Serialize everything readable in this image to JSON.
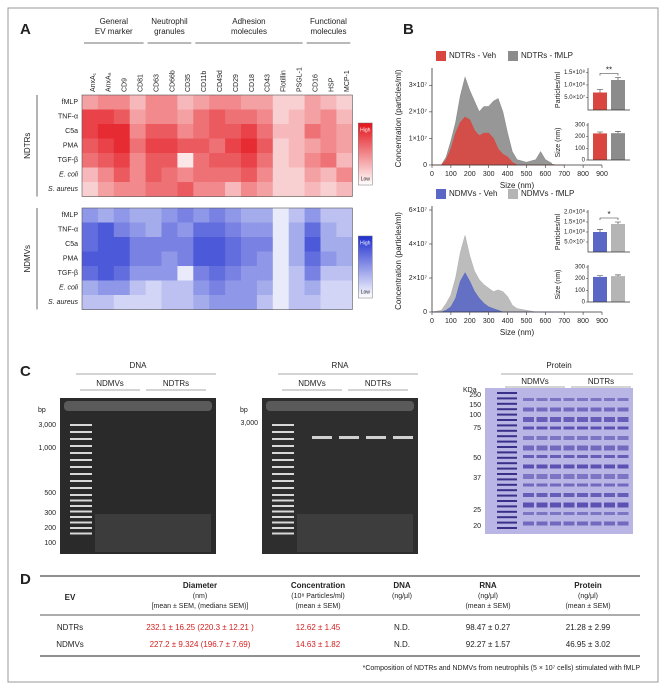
{
  "panel_labels": [
    "A",
    "B",
    "C",
    "D"
  ],
  "chart_data": [
    {
      "type": "heatmap",
      "label": "NDTRs",
      "color": "#e3131b",
      "legend_labels": [
        "High",
        "Low"
      ],
      "column_groups": [
        {
          "name": [
            "General",
            "EV marker"
          ],
          "categories": [
            "AnxA₁",
            "AnxA₅",
            "CD9",
            "CD81"
          ]
        },
        {
          "name": [
            "Neutrophil",
            "granules"
          ],
          "categories": [
            "CD63",
            "CD66b",
            "CD35"
          ]
        },
        {
          "name": [
            "Adhesion",
            "molecules"
          ],
          "categories": [
            "CD11b",
            "CD49d",
            "CD29",
            "CD18",
            "CD43",
            "Flotillin",
            "PSGL-1"
          ]
        },
        {
          "name": [
            "Functional",
            "molecules"
          ],
          "categories": [
            "CD16",
            "HSP",
            "MCP-1"
          ]
        }
      ],
      "rows": [
        "fMLP",
        "TNF-α",
        "C5a",
        "PMA",
        "TGF-β",
        "E. coli",
        "S. aureus"
      ],
      "values": [
        [
          0.4,
          0.5,
          0.5,
          0.3,
          0.5,
          0.5,
          0.3,
          0.4,
          0.5,
          0.5,
          0.4,
          0.4,
          0.2,
          0.2,
          0.4,
          0.3,
          0.2
        ],
        [
          0.8,
          0.8,
          0.7,
          0.4,
          0.5,
          0.5,
          0.4,
          0.6,
          0.7,
          0.6,
          0.6,
          0.5,
          0.2,
          0.3,
          0.4,
          0.5,
          0.3
        ],
        [
          0.8,
          0.9,
          0.9,
          0.5,
          0.7,
          0.7,
          0.5,
          0.6,
          0.7,
          0.7,
          0.8,
          0.6,
          0.3,
          0.3,
          0.6,
          0.5,
          0.4
        ],
        [
          0.7,
          0.8,
          0.9,
          0.6,
          0.8,
          0.8,
          0.7,
          0.7,
          0.6,
          0.8,
          0.9,
          0.7,
          0.2,
          0.3,
          0.4,
          0.5,
          0.4
        ],
        [
          0.6,
          0.7,
          0.8,
          0.5,
          0.7,
          0.7,
          0.1,
          0.6,
          0.7,
          0.7,
          0.8,
          0.6,
          0.2,
          0.3,
          0.5,
          0.6,
          0.3
        ],
        [
          0.3,
          0.5,
          0.7,
          0.5,
          0.7,
          0.6,
          0.5,
          0.6,
          0.6,
          0.6,
          0.7,
          0.5,
          0.2,
          0.2,
          0.4,
          0.3,
          0.5
        ],
        [
          0.2,
          0.4,
          0.5,
          0.5,
          0.6,
          0.6,
          0.7,
          0.5,
          0.5,
          0.3,
          0.5,
          0.4,
          0.2,
          0.2,
          0.3,
          0.2,
          0.3
        ]
      ]
    },
    {
      "type": "heatmap",
      "label": "NDMVs",
      "color": "#1f2fd0",
      "legend_labels": [
        "High",
        "Low"
      ],
      "rows": [
        "fMLP",
        "TNF-α",
        "C5a",
        "PMA",
        "TGF-β",
        "E. coli",
        "S. aureus"
      ],
      "values": [
        [
          0.5,
          0.4,
          0.5,
          0.4,
          0.4,
          0.5,
          0.6,
          0.5,
          0.6,
          0.5,
          0.4,
          0.4,
          0.1,
          0.3,
          0.5,
          0.3,
          0.3
        ],
        [
          0.7,
          0.8,
          0.6,
          0.5,
          0.4,
          0.6,
          0.5,
          0.7,
          0.7,
          0.6,
          0.5,
          0.5,
          0.1,
          0.4,
          0.7,
          0.4,
          0.3
        ],
        [
          0.7,
          0.8,
          0.8,
          0.6,
          0.6,
          0.6,
          0.6,
          0.8,
          0.8,
          0.7,
          0.6,
          0.6,
          0.1,
          0.4,
          0.8,
          0.4,
          0.4
        ],
        [
          0.8,
          0.8,
          0.8,
          0.6,
          0.6,
          0.5,
          0.6,
          0.8,
          0.8,
          0.7,
          0.6,
          0.5,
          0.1,
          0.4,
          0.7,
          0.5,
          0.4
        ],
        [
          0.7,
          0.8,
          0.7,
          0.5,
          0.5,
          0.5,
          0.1,
          0.6,
          0.7,
          0.6,
          0.5,
          0.5,
          0.1,
          0.3,
          0.6,
          0.3,
          0.3
        ],
        [
          0.4,
          0.5,
          0.5,
          0.3,
          0.2,
          0.3,
          0.3,
          0.5,
          0.6,
          0.5,
          0.5,
          0.4,
          0.1,
          0.3,
          0.4,
          0.2,
          0.2
        ],
        [
          0.3,
          0.3,
          0.2,
          0.2,
          0.2,
          0.3,
          0.3,
          0.4,
          0.5,
          0.5,
          0.5,
          0.3,
          0.1,
          0.3,
          0.3,
          0.2,
          0.2
        ]
      ]
    },
    {
      "type": "area",
      "xlabel": "Size (nm)",
      "ylabel": "Concentration (particles/ml)",
      "x": [
        0,
        50,
        75,
        100,
        125,
        150,
        175,
        200,
        225,
        250,
        275,
        300,
        325,
        350,
        375,
        400,
        425,
        450,
        500,
        550,
        575,
        600,
        650,
        700
      ],
      "series": [
        {
          "name": "NDTRs - Veh",
          "color": "#d9463f",
          "values": [
            0,
            0,
            2000000,
            6000000,
            12000000,
            16000000,
            18000000,
            17000000,
            13000000,
            11000000,
            12000000,
            12000000,
            10000000,
            6000000,
            4000000,
            3000000,
            1000000,
            0,
            0,
            0,
            0,
            0,
            0,
            0
          ]
        },
        {
          "name": "NDTRs - fMLP",
          "color": "#8c8c8c",
          "values": [
            0,
            0,
            3000000,
            9000000,
            16000000,
            26000000,
            33000000,
            28000000,
            24000000,
            20000000,
            22000000,
            22000000,
            24000000,
            25000000,
            20000000,
            12000000,
            5000000,
            2000000,
            1000000,
            2000000,
            5000000,
            2000000,
            0,
            0
          ]
        }
      ],
      "xlim": [
        0,
        900
      ],
      "xticks": [
        0,
        100,
        200,
        300,
        400,
        500,
        600,
        700,
        800,
        900
      ],
      "ylim": [
        0,
        35000000
      ],
      "yticks": [
        0,
        {
          "value": 10000000,
          "label": "1×10⁷"
        },
        {
          "value": 20000000,
          "label": "2×10⁷"
        },
        {
          "value": 30000000,
          "label": "3×10⁷"
        }
      ]
    },
    {
      "type": "bar",
      "ylabel": "Particles/ml",
      "values": [
        70000000,
        120000000
      ],
      "errors": [
        12000000,
        10000000
      ],
      "colors": [
        "#d9463f",
        "#8c8c8c"
      ],
      "annotation": "**",
      "ylim": [
        0,
        160000000
      ],
      "yticks": [
        {
          "value": 50000000,
          "label": "5.0×10⁷"
        },
        {
          "value": 100000000,
          "label": "1.0×10⁸"
        },
        {
          "value": 150000000,
          "label": "1.5×10⁸"
        }
      ]
    },
    {
      "type": "bar",
      "ylabel": "Size (nm)",
      "values": [
        228,
        230
      ],
      "errors": [
        12,
        15
      ],
      "colors": [
        "#d9463f",
        "#8c8c8c"
      ],
      "ylim": [
        0,
        300
      ],
      "yticks": [
        0,
        100,
        200,
        300
      ]
    },
    {
      "type": "area",
      "xlabel": "Size (nm)",
      "ylabel": "Concentration (particles/ml)",
      "x": [
        0,
        50,
        75,
        100,
        125,
        150,
        175,
        200,
        225,
        250,
        275,
        300,
        325,
        350,
        375,
        400,
        425,
        450,
        500,
        550,
        575,
        600,
        650,
        700
      ],
      "series": [
        {
          "name": "NDMVs - Veh",
          "color": "#5a67c4",
          "values": [
            0,
            0,
            1000000,
            3000000,
            8000000,
            18000000,
            23000000,
            18000000,
            12000000,
            8000000,
            5000000,
            3000000,
            2000000,
            1000000,
            0,
            0,
            0,
            0,
            0,
            0,
            0,
            0,
            0,
            0
          ]
        },
        {
          "name": "NDMVs - fMLP",
          "color": "#b5b5b5",
          "values": [
            0,
            1000000,
            5000000,
            10000000,
            20000000,
            35000000,
            45000000,
            33000000,
            24000000,
            19000000,
            16000000,
            14000000,
            12000000,
            13000000,
            12000000,
            9000000,
            4000000,
            2000000,
            1000000,
            0,
            0,
            0,
            0,
            0
          ]
        }
      ],
      "xlim": [
        0,
        900
      ],
      "xticks": [
        0,
        100,
        200,
        300,
        400,
        500,
        600,
        700,
        800,
        900
      ],
      "ylim": [
        0,
        60000000
      ],
      "yticks": [
        0,
        {
          "value": 20000000,
          "label": "2×10⁷"
        },
        {
          "value": 40000000,
          "label": "4×10⁷"
        },
        {
          "value": 60000000,
          "label": "6×10⁷"
        }
      ]
    },
    {
      "type": "bar",
      "ylabel": "Particles/ml",
      "values": [
        100000000,
        140000000
      ],
      "errors": [
        12000000,
        10000000
      ],
      "colors": [
        "#5a67c4",
        "#b5b5b5"
      ],
      "annotation": "*",
      "ylim": [
        0,
        200000000
      ],
      "yticks": [
        {
          "value": 50000000,
          "label": "5.0×10⁷"
        },
        {
          "value": 100000000,
          "label": "1.0×10⁸"
        },
        {
          "value": 150000000,
          "label": "1.5×10⁸"
        },
        {
          "value": 200000000,
          "label": "2.0×10⁸"
        }
      ]
    },
    {
      "type": "bar",
      "ylabel": "Size (nm)",
      "values": [
        215,
        222
      ],
      "errors": [
        10,
        10
      ],
      "colors": [
        "#5a67c4",
        "#b5b5b5"
      ],
      "ylim": [
        0,
        300
      ],
      "yticks": [
        0,
        100,
        200,
        300
      ]
    }
  ],
  "gels": [
    {
      "title": "DNA",
      "groups": [
        "NDMVs",
        "NDTRs"
      ],
      "unit": "bp",
      "ladder": [
        "3,000",
        "1,000",
        "500",
        "300",
        "200",
        "100"
      ]
    },
    {
      "title": "RNA",
      "groups": [
        "NDMVs",
        "NDTRs"
      ],
      "unit": "bp",
      "ladder": [
        "3,000"
      ]
    },
    {
      "title": "Protein",
      "groups": [
        "NDMVs",
        "NDTRs"
      ],
      "unit": "KDa",
      "ladder": [
        "250",
        "150",
        "100",
        "75",
        "50",
        "37",
        "25",
        "20"
      ]
    }
  ],
  "table": {
    "header": [
      [
        "EV"
      ],
      [
        "Diameter",
        "(nm)",
        "[mean ± SEM, (median± SEM)]"
      ],
      [
        "Concentration",
        "(10⁸ Particles/ml)",
        "(mean ± SEM)"
      ],
      [
        "DNA",
        "(ng/μl)"
      ],
      [
        "RNA",
        "(ng/μl)",
        "(mean ± SEM)"
      ],
      [
        "Protein",
        "(ng/μl)",
        "(mean ± SEM)"
      ]
    ],
    "rows": [
      [
        "NDTRs",
        "232.1 ± 16.25 (220.3 ± 12.21 )",
        "12.62 ± 1.45",
        "N.D.",
        "98.47 ± 0.27",
        "21.28 ± 2.99"
      ],
      [
        "NDMVs",
        "227.2 ± 9.324 (196.7 ± 7.69)",
        "14.63 ± 1.82",
        "N.D.",
        "92.27 ± 1.57",
        "46.95 ± 3.02"
      ]
    ],
    "footnote": "*Composition of NDTRs and NDMVs from neutrophils (5 × 10⁷ cells) stimulated with fMLP"
  }
}
